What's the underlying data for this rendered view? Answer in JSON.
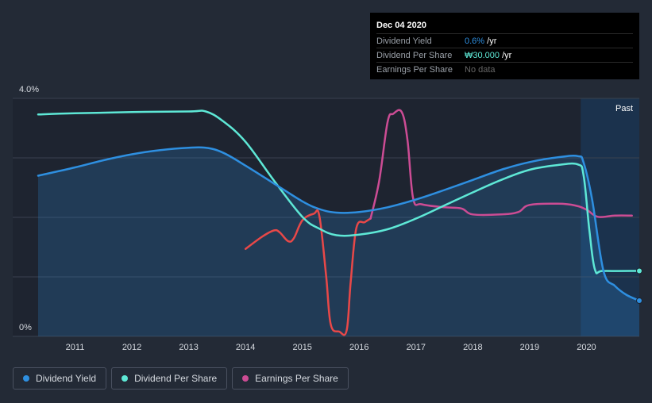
{
  "tooltip": {
    "date": "Dec 04 2020",
    "rows": [
      {
        "label": "Dividend Yield",
        "value": "0.6%",
        "unit": " /yr",
        "color": "#2e8fe0"
      },
      {
        "label": "Dividend Per Share",
        "value": "₩30.000",
        "unit": " /yr",
        "color": "#5ee8d6"
      },
      {
        "label": "Earnings Per Share",
        "value": "No data",
        "unit": "",
        "color": "#666666"
      }
    ]
  },
  "legend": [
    {
      "label": "Dividend Yield",
      "color": "#2e8fe0"
    },
    {
      "label": "Dividend Per Share",
      "color": "#5ee8d6"
    },
    {
      "label": "Earnings Per Share",
      "color": "#cc4c94"
    }
  ],
  "chart_data": {
    "type": "line",
    "title": "",
    "xlabel": "",
    "ylabel": "",
    "ylim": [
      0,
      4.0
    ],
    "xlim": [
      2010.35,
      2020.93
    ],
    "y_tick_labels": [
      "4.0%",
      "0%"
    ],
    "x_ticks": [
      2011,
      2012,
      2013,
      2014,
      2015,
      2016,
      2017,
      2018,
      2019,
      2020
    ],
    "past_label": "Past",
    "past_start": 2019.9,
    "series": [
      {
        "name": "Dividend Yield",
        "color": "#2e8fe0",
        "points": [
          [
            2010.35,
            2.7
          ],
          [
            2011,
            2.84
          ],
          [
            2011.5,
            2.96
          ],
          [
            2012,
            3.06
          ],
          [
            2012.5,
            3.13
          ],
          [
            2013,
            3.17
          ],
          [
            2013.3,
            3.17
          ],
          [
            2013.6,
            3.09
          ],
          [
            2014,
            2.87
          ],
          [
            2014.5,
            2.57
          ],
          [
            2015,
            2.27
          ],
          [
            2015.3,
            2.14
          ],
          [
            2015.6,
            2.08
          ],
          [
            2016,
            2.09
          ],
          [
            2016.5,
            2.17
          ],
          [
            2017,
            2.3
          ],
          [
            2017.5,
            2.46
          ],
          [
            2018,
            2.63
          ],
          [
            2018.5,
            2.8
          ],
          [
            2019,
            2.93
          ],
          [
            2019.5,
            3.01
          ],
          [
            2019.85,
            3.03
          ],
          [
            2019.95,
            2.92
          ],
          [
            2020.1,
            2.3
          ],
          [
            2020.3,
            1.1
          ],
          [
            2020.5,
            0.85
          ],
          [
            2020.7,
            0.7
          ],
          [
            2020.93,
            0.6
          ]
        ]
      },
      {
        "name": "Dividend Per Share",
        "color": "#5ee8d6",
        "points": [
          [
            2010.35,
            3.73
          ],
          [
            2011,
            3.75
          ],
          [
            2012,
            3.77
          ],
          [
            2013,
            3.78
          ],
          [
            2013.3,
            3.78
          ],
          [
            2013.6,
            3.62
          ],
          [
            2014,
            3.27
          ],
          [
            2014.5,
            2.62
          ],
          [
            2015,
            2.01
          ],
          [
            2015.3,
            1.81
          ],
          [
            2015.6,
            1.7
          ],
          [
            2016,
            1.71
          ],
          [
            2016.5,
            1.8
          ],
          [
            2017,
            1.98
          ],
          [
            2017.5,
            2.2
          ],
          [
            2018,
            2.42
          ],
          [
            2018.5,
            2.63
          ],
          [
            2019,
            2.8
          ],
          [
            2019.5,
            2.88
          ],
          [
            2019.85,
            2.89
          ],
          [
            2019.95,
            2.7
          ],
          [
            2020.05,
            1.8
          ],
          [
            2020.15,
            1.12
          ],
          [
            2020.3,
            1.1
          ],
          [
            2020.93,
            1.1
          ]
        ]
      },
      {
        "name": "Earnings Per Share",
        "color": "#cc4c94",
        "segments": [
          {
            "color": "#e84848",
            "points": [
              [
                2014,
                1.47
              ],
              [
                2014.3,
                1.68
              ],
              [
                2014.5,
                1.78
              ],
              [
                2014.6,
                1.75
              ],
              [
                2014.75,
                1.6
              ],
              [
                2014.85,
                1.65
              ],
              [
                2015,
                1.95
              ],
              [
                2015.2,
                2.06
              ],
              [
                2015.3,
                2.02
              ],
              [
                2015.42,
                1.0
              ],
              [
                2015.5,
                0.2
              ],
              [
                2015.65,
                0.08
              ],
              [
                2015.78,
                0.1
              ],
              [
                2015.85,
                0.9
              ],
              [
                2015.95,
                1.82
              ],
              [
                2016.1,
                1.92
              ],
              [
                2016.2,
                1.98
              ]
            ]
          },
          {
            "color": "#cc4c94",
            "points": [
              [
                2016.2,
                1.98
              ],
              [
                2016.35,
                2.6
              ],
              [
                2016.5,
                3.6
              ],
              [
                2016.6,
                3.74
              ],
              [
                2016.75,
                3.77
              ],
              [
                2016.85,
                3.3
              ],
              [
                2016.95,
                2.32
              ],
              [
                2017.1,
                2.22
              ],
              [
                2017.5,
                2.17
              ],
              [
                2017.8,
                2.15
              ],
              [
                2018,
                2.05
              ],
              [
                2018.5,
                2.05
              ],
              [
                2018.8,
                2.09
              ],
              [
                2019,
                2.21
              ],
              [
                2019.5,
                2.23
              ],
              [
                2019.8,
                2.2
              ],
              [
                2020,
                2.13
              ],
              [
                2020.2,
                2.01
              ],
              [
                2020.5,
                2.03
              ],
              [
                2020.8,
                2.03
              ]
            ]
          }
        ]
      }
    ]
  }
}
